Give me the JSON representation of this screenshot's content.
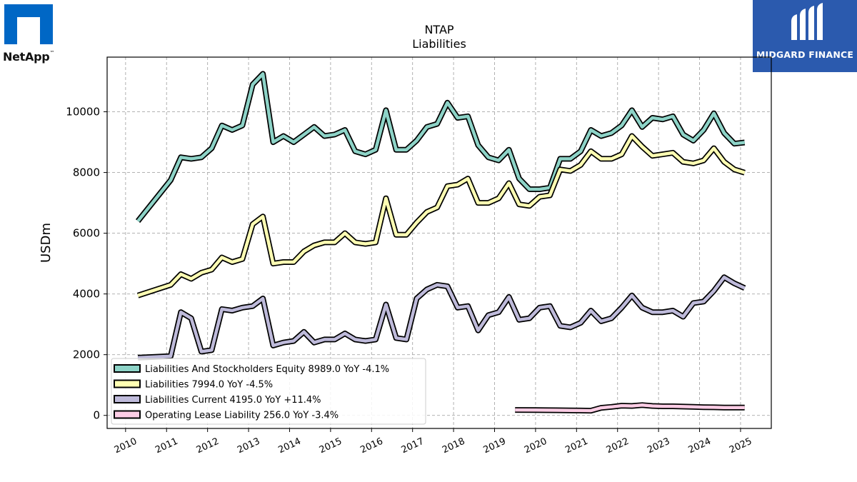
{
  "header": {
    "netapp_logo_text": "NetApp",
    "netapp_tm": "™",
    "midgard_logo_text": "MIDGARD FINANCE"
  },
  "chart_data": {
    "type": "line",
    "title": "NTAP",
    "subtitle": "Liabilities",
    "xlabel": "",
    "ylabel": "USDm",
    "xlim": [
      2009.55,
      2025.75
    ],
    "ylim": [
      -430,
      11800
    ],
    "x_ticks": [
      2010,
      2011,
      2012,
      2013,
      2014,
      2015,
      2016,
      2017,
      2018,
      2019,
      2020,
      2021,
      2022,
      2023,
      2024,
      2025
    ],
    "y_ticks": [
      0,
      2000,
      4000,
      6000,
      8000,
      10000
    ],
    "grid": true,
    "legend_position": "lower-left",
    "series": [
      {
        "name": "Liabilities And Stockholders Equity  8989.0 YoY -4.1%",
        "color": "#8dd3c7",
        "x": [
          2010.3,
          2011.1,
          2011.35,
          2011.6,
          2011.85,
          2012.1,
          2012.35,
          2012.6,
          2012.85,
          2013.1,
          2013.35,
          2013.6,
          2013.85,
          2014.1,
          2014.35,
          2014.6,
          2014.85,
          2015.1,
          2015.35,
          2015.6,
          2015.85,
          2016.1,
          2016.35,
          2016.6,
          2016.85,
          2017.1,
          2017.35,
          2017.6,
          2017.85,
          2018.1,
          2018.35,
          2018.6,
          2018.85,
          2019.1,
          2019.35,
          2019.6,
          2019.85,
          2020.1,
          2020.35,
          2020.6,
          2020.85,
          2021.1,
          2021.35,
          2021.6,
          2021.85,
          2022.1,
          2022.35,
          2022.6,
          2022.85,
          2023.1,
          2023.35,
          2023.6,
          2023.85,
          2024.1,
          2024.35,
          2024.6,
          2024.85,
          2025.1
        ],
        "values": [
          6400,
          7750,
          8500,
          8450,
          8500,
          8800,
          9550,
          9400,
          9550,
          10900,
          11250,
          9000,
          9200,
          9000,
          9250,
          9500,
          9200,
          9250,
          9400,
          8700,
          8600,
          8750,
          10050,
          8750,
          8750,
          9050,
          9500,
          9600,
          10300,
          9800,
          9850,
          8900,
          8500,
          8400,
          8750,
          7800,
          7450,
          7450,
          7500,
          8450,
          8450,
          8700,
          9400,
          9200,
          9300,
          9550,
          10050,
          9500,
          9800,
          9750,
          9850,
          9250,
          9050,
          9400,
          9950,
          9300,
          8950,
          8989
        ]
      },
      {
        "name": "Liabilities  7994.0 YoY -4.5%",
        "color": "#ffffb3",
        "x": [
          2010.3,
          2011.1,
          2011.35,
          2011.6,
          2011.85,
          2012.1,
          2012.35,
          2012.6,
          2012.85,
          2013.1,
          2013.35,
          2013.6,
          2013.85,
          2014.1,
          2014.35,
          2014.6,
          2014.85,
          2015.1,
          2015.35,
          2015.6,
          2015.85,
          2016.1,
          2016.35,
          2016.6,
          2016.85,
          2017.1,
          2017.35,
          2017.6,
          2017.85,
          2018.1,
          2018.35,
          2018.6,
          2018.85,
          2019.1,
          2019.35,
          2019.6,
          2019.85,
          2020.1,
          2020.35,
          2020.6,
          2020.85,
          2021.1,
          2021.35,
          2021.6,
          2021.85,
          2022.1,
          2022.35,
          2022.6,
          2022.85,
          2023.1,
          2023.35,
          2023.6,
          2023.85,
          2024.1,
          2024.35,
          2024.6,
          2024.85,
          2025.1
        ],
        "values": [
          3950,
          4300,
          4650,
          4500,
          4700,
          4800,
          5200,
          5050,
          5150,
          6300,
          6550,
          5000,
          5050,
          5050,
          5400,
          5600,
          5700,
          5700,
          6000,
          5700,
          5650,
          5700,
          7150,
          5950,
          5950,
          6350,
          6700,
          6850,
          7550,
          7600,
          7800,
          7000,
          7000,
          7150,
          7650,
          6950,
          6900,
          7200,
          7250,
          8100,
          8050,
          8250,
          8700,
          8450,
          8450,
          8600,
          9200,
          8850,
          8550,
          8600,
          8650,
          8350,
          8300,
          8400,
          8800,
          8350,
          8100,
          7994
        ]
      },
      {
        "name": "Liabilities Current  4195.0 YoY +11.4%",
        "color": "#bebada",
        "x": [
          2010.3,
          2011.1,
          2011.35,
          2011.6,
          2011.85,
          2012.1,
          2012.35,
          2012.6,
          2012.85,
          2013.1,
          2013.35,
          2013.6,
          2013.85,
          2014.1,
          2014.35,
          2014.6,
          2014.85,
          2015.1,
          2015.35,
          2015.6,
          2015.85,
          2016.1,
          2016.35,
          2016.6,
          2016.85,
          2017.1,
          2017.35,
          2017.6,
          2017.85,
          2018.1,
          2018.35,
          2018.6,
          2018.85,
          2019.1,
          2019.35,
          2019.6,
          2019.85,
          2020.1,
          2020.35,
          2020.6,
          2020.85,
          2021.1,
          2021.35,
          2021.6,
          2021.85,
          2022.1,
          2022.35,
          2022.6,
          2022.85,
          2023.1,
          2023.35,
          2023.6,
          2023.85,
          2024.1,
          2024.35,
          2024.6,
          2024.85,
          2025.1
        ],
        "values": [
          1900,
          1950,
          3400,
          3200,
          2100,
          2150,
          3500,
          3450,
          3550,
          3600,
          3850,
          2300,
          2400,
          2450,
          2750,
          2400,
          2500,
          2500,
          2700,
          2500,
          2450,
          2500,
          3650,
          2550,
          2500,
          3850,
          4150,
          4300,
          4250,
          3550,
          3600,
          2800,
          3300,
          3400,
          3900,
          3150,
          3200,
          3550,
          3600,
          2950,
          2900,
          3050,
          3450,
          3100,
          3200,
          3550,
          3950,
          3550,
          3400,
          3400,
          3450,
          3250,
          3700,
          3750,
          4100,
          4550,
          4350,
          4195
        ]
      },
      {
        "name": "Operating Lease Liability  256.0 YoY -3.4%",
        "color": "#fccde5",
        "x": [
          2019.5,
          2020.0,
          2020.5,
          2020.85,
          2021.1,
          2021.35,
          2021.6,
          2021.85,
          2022.1,
          2022.35,
          2022.6,
          2022.85,
          2023.1,
          2023.35,
          2023.6,
          2023.85,
          2024.1,
          2024.35,
          2024.6,
          2024.85,
          2025.1
        ],
        "values": [
          180,
          175,
          170,
          165,
          160,
          155,
          250,
          280,
          320,
          310,
          340,
          310,
          300,
          300,
          290,
          280,
          270,
          265,
          260,
          258,
          256
        ]
      }
    ]
  }
}
